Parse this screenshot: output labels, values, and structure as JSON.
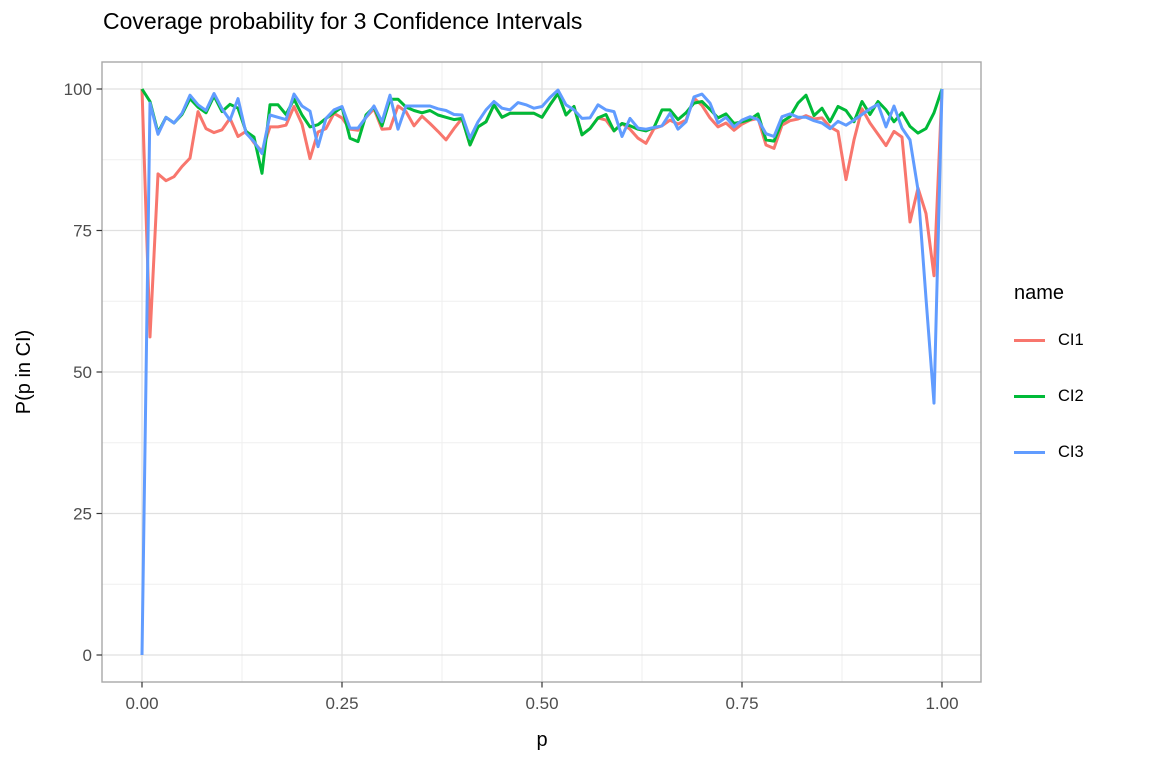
{
  "chart_data": {
    "type": "line",
    "title": "Coverage probability for 3 Confidence Intervals",
    "xlabel": "p",
    "ylabel": "P(p in CI)",
    "legend_title": "name",
    "legend_position": "right",
    "grid": "on",
    "xlim": [
      0,
      1
    ],
    "ylim": [
      0,
      100
    ],
    "x_ticks": [
      {
        "v": 0,
        "label": "0.00"
      },
      {
        "v": 0.25,
        "label": "0.25"
      },
      {
        "v": 0.5,
        "label": "0.50"
      },
      {
        "v": 0.75,
        "label": "0.75"
      },
      {
        "v": 1,
        "label": "1.00"
      }
    ],
    "y_ticks": [
      {
        "v": 0,
        "label": "0"
      },
      {
        "v": 25,
        "label": "25"
      },
      {
        "v": 50,
        "label": "50"
      },
      {
        "v": 75,
        "label": "75"
      },
      {
        "v": 100,
        "label": "100"
      }
    ],
    "x_minor": [
      0.125,
      0.375,
      0.625,
      0.875
    ],
    "y_minor": [
      12.5,
      37.5,
      62.5,
      87.5
    ],
    "colors": {
      "grid_major": "#e0e0e0",
      "grid_minor": "#efefef",
      "panel_border": "#a8a8a8",
      "tick_mark": "#333333",
      "tick_label": "#4d4d4d",
      "axis_title": "#000000",
      "background": "#ffffff"
    },
    "x": [
      0,
      0.01,
      0.02,
      0.03,
      0.04,
      0.05,
      0.06,
      0.07,
      0.08,
      0.09,
      0.1,
      0.11,
      0.12,
      0.13,
      0.14,
      0.15,
      0.16,
      0.17,
      0.18,
      0.19,
      0.2,
      0.21,
      0.22,
      0.23,
      0.24,
      0.25,
      0.26,
      0.27,
      0.28,
      0.29,
      0.3,
      0.31,
      0.32,
      0.33,
      0.34,
      0.35,
      0.36,
      0.37,
      0.38,
      0.39,
      0.4,
      0.41,
      0.42,
      0.43,
      0.44,
      0.45,
      0.46,
      0.47,
      0.48,
      0.49,
      0.5,
      0.51,
      0.52,
      0.53,
      0.54,
      0.55,
      0.56,
      0.57,
      0.58,
      0.59,
      0.6,
      0.61,
      0.62,
      0.63,
      0.64,
      0.65,
      0.66,
      0.67,
      0.68,
      0.69,
      0.7,
      0.71,
      0.72,
      0.73,
      0.74,
      0.75,
      0.76,
      0.77,
      0.78,
      0.79,
      0.8,
      0.81,
      0.82,
      0.83,
      0.84,
      0.85,
      0.86,
      0.87,
      0.88,
      0.89,
      0.9,
      0.91,
      0.92,
      0.93,
      0.94,
      0.95,
      0.96,
      0.97,
      0.98,
      0.99,
      1
    ],
    "series": [
      {
        "name": "CI1",
        "color": "#F8766D",
        "values": [
          100,
          56.2,
          85,
          83.8,
          84.5,
          86.3,
          87.8,
          96,
          93,
          92.3,
          92.8,
          94.8,
          91.6,
          92.5,
          90.5,
          89,
          93.3,
          93.3,
          93.6,
          96.9,
          93.8,
          87.7,
          92.4,
          93,
          95.7,
          94.9,
          92.9,
          92.7,
          95,
          96.5,
          92.9,
          93,
          97,
          96,
          93.5,
          95.2,
          93.9,
          92.5,
          91,
          93,
          94.8,
          90.1,
          93.3,
          94.2,
          97.2,
          95,
          95.7,
          95.7,
          95.7,
          95.7,
          95,
          97.2,
          99.2,
          95.4,
          96.9,
          91.9,
          93,
          94.9,
          94.5,
          92.6,
          93.9,
          92.9,
          91.3,
          90.4,
          93,
          93.5,
          94.5,
          93.8,
          94.5,
          98.4,
          97.1,
          94.9,
          93.3,
          94,
          92.7,
          93.8,
          94.5,
          94.8,
          90.1,
          89.5,
          93.6,
          94.4,
          94.7,
          95.3,
          94.7,
          94.9,
          93.3,
          92.5,
          84,
          91,
          96.5,
          94,
          92,
          90,
          92.5,
          91.5,
          76.5,
          82.5,
          78,
          67,
          100
        ]
      },
      {
        "name": "CI2",
        "color": "#00BA38",
        "values": [
          100,
          97.8,
          92.3,
          95,
          94,
          95.5,
          98.3,
          96.8,
          95.8,
          98.8,
          96,
          97.3,
          96.6,
          92.5,
          91.5,
          85.1,
          97.2,
          97.2,
          95.5,
          98.2,
          95.4,
          93.3,
          93.7,
          94.8,
          95.8,
          96.8,
          91.3,
          90.7,
          95.4,
          96.8,
          93.5,
          98.2,
          98.2,
          96.8,
          96.2,
          95.8,
          96.2,
          95.4,
          95,
          94.6,
          94.8,
          90.1,
          93.3,
          94.2,
          97.2,
          95,
          95.7,
          95.7,
          95.7,
          95.7,
          95,
          97.2,
          99.2,
          95.4,
          96.9,
          91.9,
          93,
          94.9,
          95.5,
          92.6,
          93.9,
          93.5,
          92.9,
          92.6,
          93.2,
          96.3,
          96.3,
          94.6,
          95.8,
          97.5,
          97.8,
          96.4,
          94.9,
          95.6,
          93.9,
          94.2,
          94.6,
          95.6,
          91,
          90.8,
          94.2,
          95.1,
          97.5,
          98.9,
          95.3,
          96.6,
          94.2,
          96.9,
          96.2,
          94.2,
          97.8,
          95.5,
          97.8,
          96.3,
          94.2,
          95.8,
          93.4,
          92.2,
          93,
          95.8,
          100
        ]
      },
      {
        "name": "CI3",
        "color": "#619CFF",
        "values": [
          0,
          97.5,
          92,
          95,
          94,
          95.7,
          98.9,
          97.2,
          96.2,
          99.2,
          96.5,
          94.5,
          98.3,
          92.2,
          90.7,
          88.6,
          95.4,
          95,
          94.6,
          99.1,
          97,
          96.1,
          89.8,
          94.8,
          96.3,
          96.9,
          93.1,
          93.1,
          95,
          97,
          94.2,
          98.9,
          92.9,
          97,
          97,
          97,
          97,
          96.5,
          96.2,
          95.5,
          95.4,
          91.3,
          94.2,
          96.3,
          97.8,
          96.6,
          96.3,
          97.6,
          97.2,
          96.6,
          96.9,
          98.5,
          99.8,
          97.2,
          96.3,
          94.8,
          94.9,
          97.2,
          96.3,
          96,
          91.6,
          94.8,
          93.1,
          92.9,
          93.2,
          93.5,
          95.7,
          92.9,
          94.2,
          98.6,
          99.1,
          97.5,
          94,
          95,
          93.3,
          94.5,
          95.1,
          94.6,
          92.1,
          91.6,
          95.1,
          95.6,
          95,
          95,
          94.4,
          94,
          93,
          94.3,
          93.6,
          94.5,
          95.5,
          96.5,
          97.3,
          93.3,
          97,
          93.1,
          91,
          82.2,
          63,
          44.5,
          100
        ]
      }
    ]
  }
}
